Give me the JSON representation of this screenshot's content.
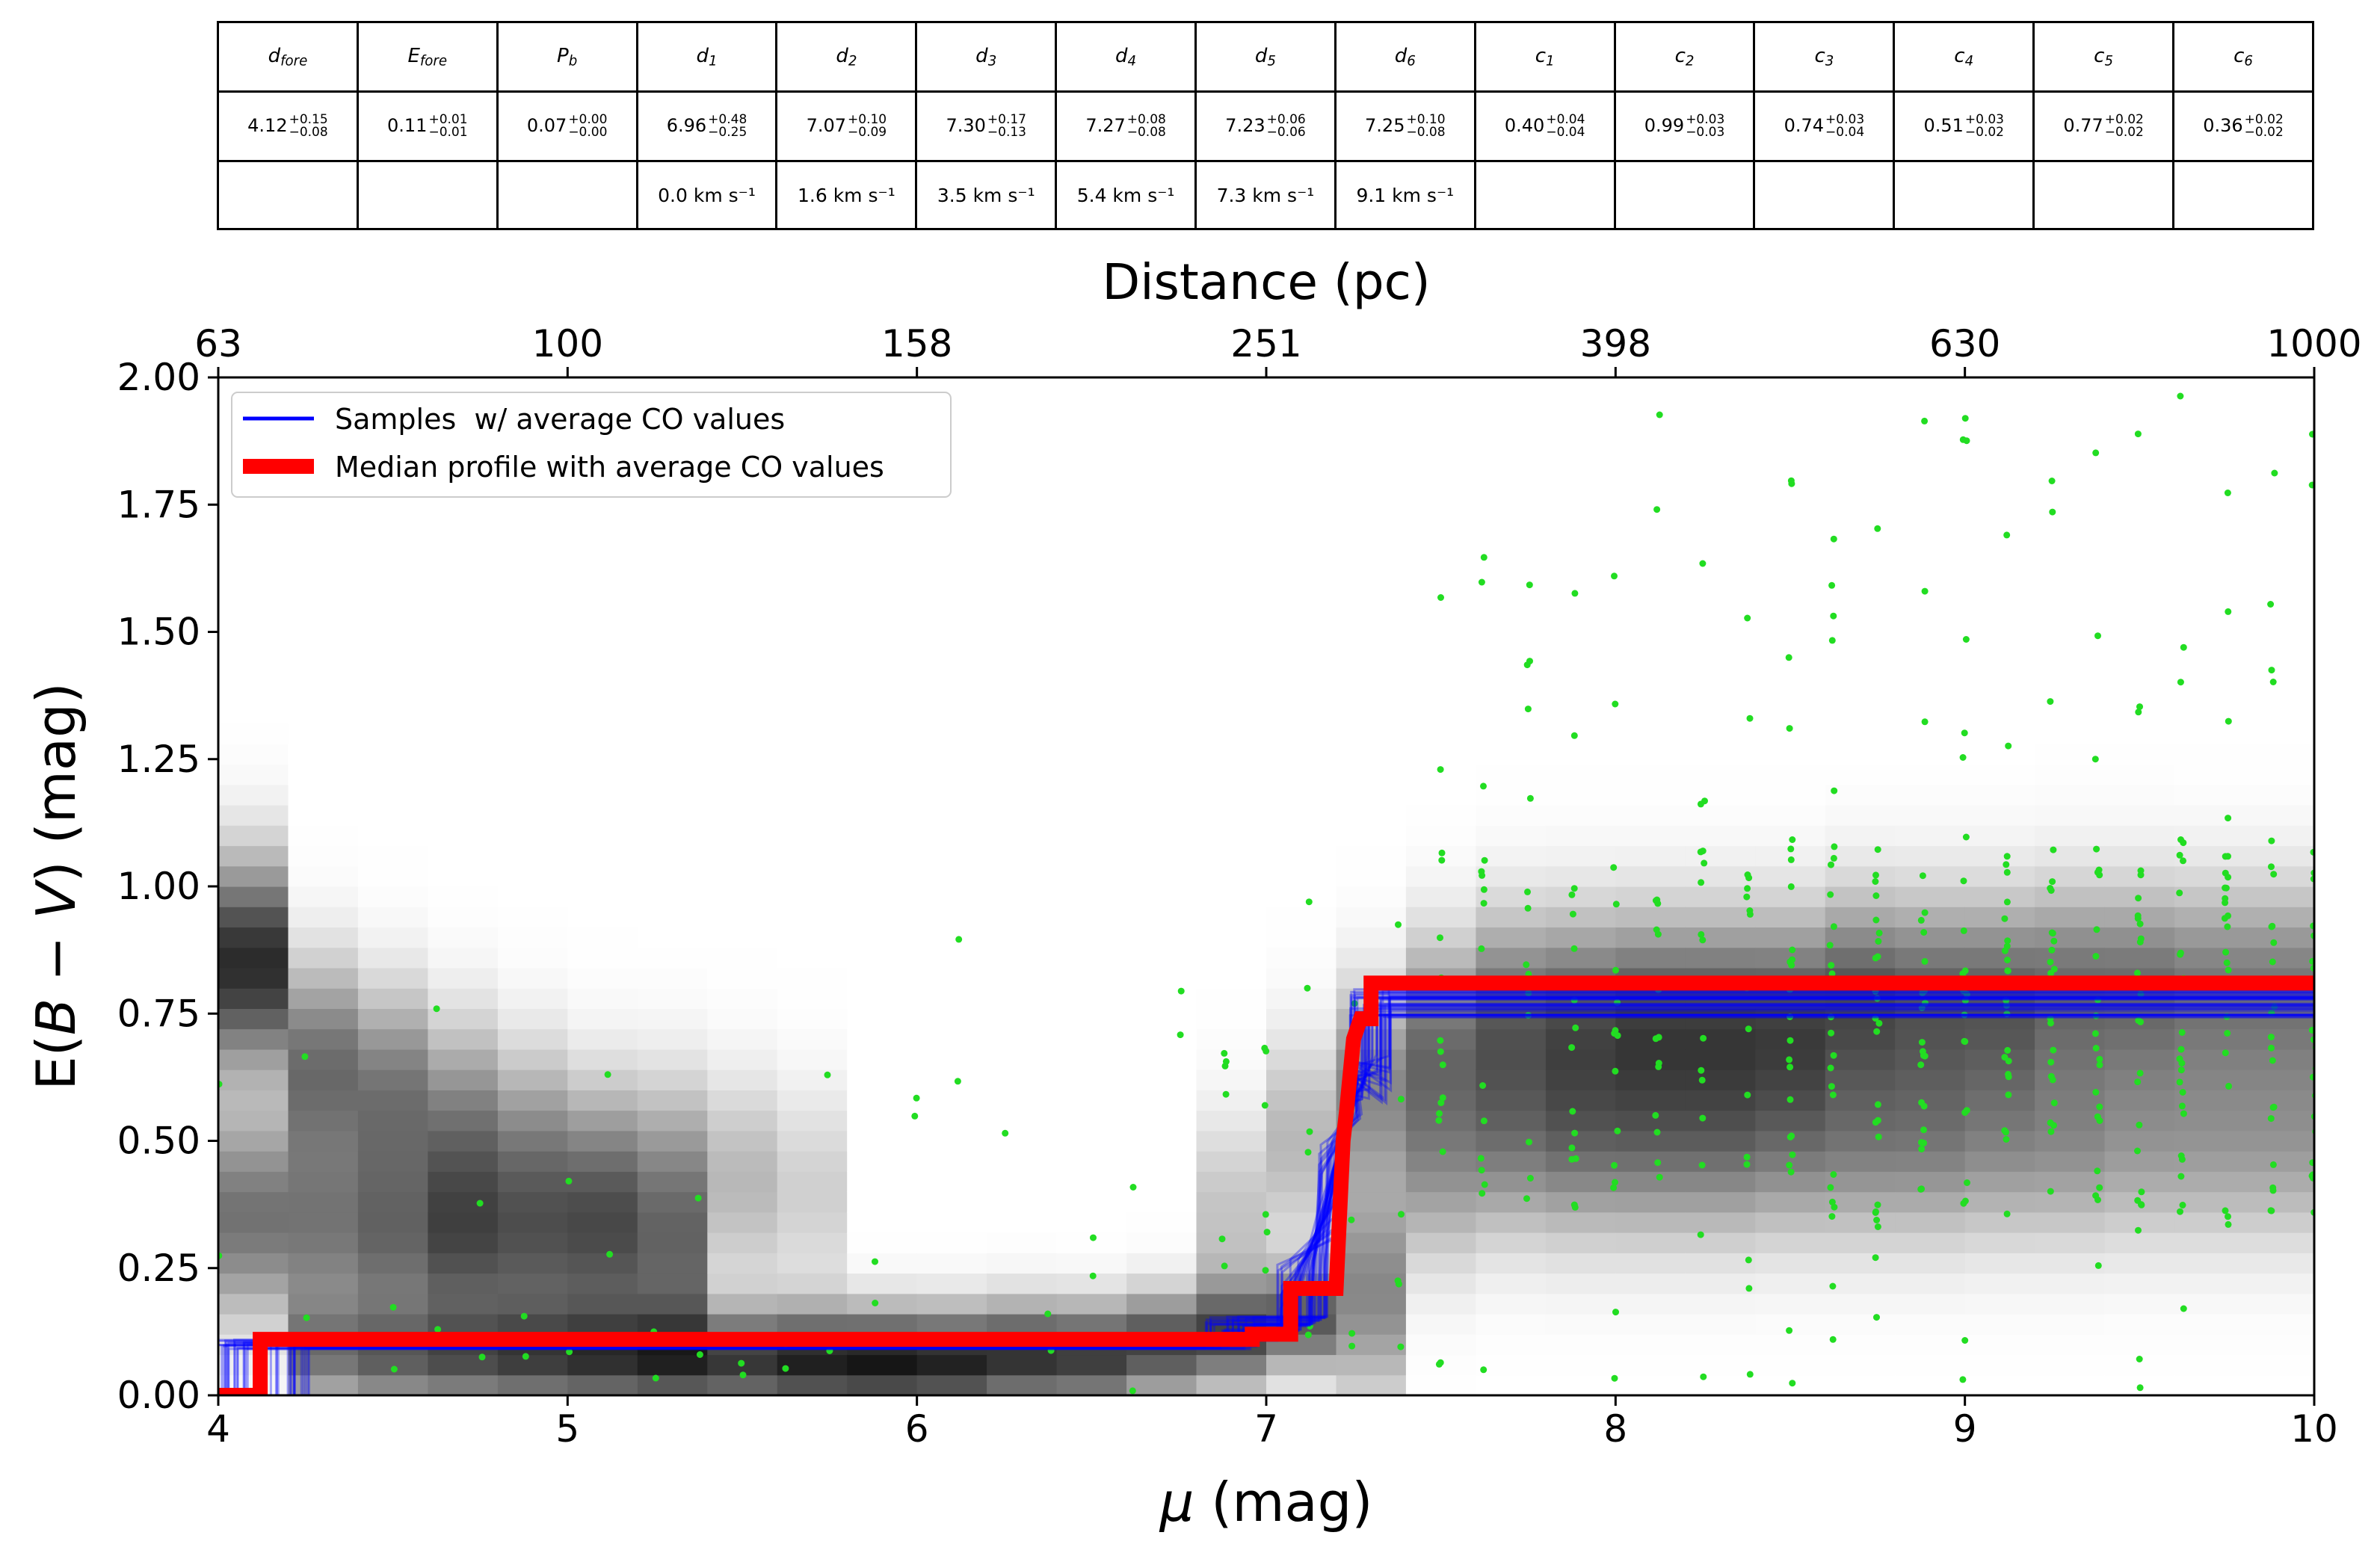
{
  "table": {
    "headers": [
      {
        "sym": "d",
        "sub": "fore"
      },
      {
        "sym": "E",
        "sub": "fore"
      },
      {
        "sym": "P",
        "sub": "b"
      },
      {
        "sym": "d",
        "sub": "1"
      },
      {
        "sym": "d",
        "sub": "2"
      },
      {
        "sym": "d",
        "sub": "3"
      },
      {
        "sym": "d",
        "sub": "4"
      },
      {
        "sym": "d",
        "sub": "5"
      },
      {
        "sym": "d",
        "sub": "6"
      },
      {
        "sym": "c",
        "sub": "1"
      },
      {
        "sym": "c",
        "sub": "2"
      },
      {
        "sym": "c",
        "sub": "3"
      },
      {
        "sym": "c",
        "sub": "4"
      },
      {
        "sym": "c",
        "sub": "5"
      },
      {
        "sym": "c",
        "sub": "6"
      }
    ],
    "values": [
      {
        "v": "4.12",
        "up": "+0.15",
        "lo": "−0.08"
      },
      {
        "v": "0.11",
        "up": "+0.01",
        "lo": "−0.01"
      },
      {
        "v": "0.07",
        "up": "+0.00",
        "lo": "−0.00"
      },
      {
        "v": "6.96",
        "up": "+0.48",
        "lo": "−0.25"
      },
      {
        "v": "7.07",
        "up": "+0.10",
        "lo": "−0.09"
      },
      {
        "v": "7.30",
        "up": "+0.17",
        "lo": "−0.13"
      },
      {
        "v": "7.27",
        "up": "+0.08",
        "lo": "−0.08"
      },
      {
        "v": "7.23",
        "up": "+0.06",
        "lo": "−0.06"
      },
      {
        "v": "7.25",
        "up": "+0.10",
        "lo": "−0.08"
      },
      {
        "v": "0.40",
        "up": "+0.04",
        "lo": "−0.04"
      },
      {
        "v": "0.99",
        "up": "+0.03",
        "lo": "−0.03"
      },
      {
        "v": "0.74",
        "up": "+0.03",
        "lo": "−0.04"
      },
      {
        "v": "0.51",
        "up": "+0.03",
        "lo": "−0.02"
      },
      {
        "v": "0.77",
        "up": "+0.02",
        "lo": "−0.02"
      },
      {
        "v": "0.36",
        "up": "+0.02",
        "lo": "−0.02"
      }
    ],
    "velocities": [
      "",
      "",
      "",
      "0.0 km s⁻¹",
      "1.6 km s⁻¹",
      "3.5 km s⁻¹",
      "5.4 km s⁻¹",
      "7.3 km s⁻¹",
      "9.1 km s⁻¹",
      "",
      "",
      "",
      "",
      "",
      ""
    ]
  },
  "chart_data": {
    "type": "line",
    "xlabel": "μ (mag)",
    "ylabel": "E(B − V) (mag)",
    "top_axis_label": "Distance (pc)",
    "xlim": [
      4,
      10
    ],
    "ylim": [
      0,
      2.0
    ],
    "x_ticks": [
      4,
      5,
      6,
      7,
      8,
      9,
      10
    ],
    "y_ticks": [
      "0.00",
      "0.25",
      "0.50",
      "0.75",
      "1.00",
      "1.25",
      "1.50",
      "1.75",
      "2.00"
    ],
    "top_ticks": [
      {
        "mu": 4,
        "label": "63"
      },
      {
        "mu": 5,
        "label": "100"
      },
      {
        "mu": 6,
        "label": "158"
      },
      {
        "mu": 7,
        "label": "251"
      },
      {
        "mu": 8,
        "label": "398"
      },
      {
        "mu": 9,
        "label": "630"
      },
      {
        "mu": 10,
        "label": "1000"
      }
    ],
    "legend": {
      "position": "top-left",
      "entries": [
        {
          "label": "Samples  w/ average CO values",
          "color": "#0000ff"
        },
        {
          "label": "Median profile with average CO values",
          "color": "#ff0000"
        }
      ]
    },
    "colors": {
      "samples": "#0000ff",
      "median": "#ff0000",
      "stars": "#22dd22"
    },
    "median_profile": {
      "x": [
        4.0,
        4.12,
        4.12,
        6.96,
        6.96,
        7.07,
        7.07,
        7.2,
        7.22,
        7.23,
        7.25,
        7.27,
        7.3,
        7.3,
        10.0
      ],
      "y": [
        0.0,
        0.0,
        0.11,
        0.11,
        0.12,
        0.12,
        0.21,
        0.21,
        0.5,
        0.56,
        0.7,
        0.74,
        0.74,
        0.81,
        0.81
      ]
    },
    "background_density": {
      "x_centers": [
        4.05,
        4.25,
        4.45,
        4.65,
        4.85,
        5.05,
        5.25,
        5.45,
        5.65,
        5.85,
        6.05,
        6.25,
        6.45,
        6.65,
        6.85,
        7.05,
        7.25,
        7.45,
        7.65,
        7.85,
        8.05,
        8.25,
        8.45,
        8.65,
        8.85,
        9.05,
        9.25,
        9.45,
        9.65,
        9.85
      ],
      "peaks": [
        [
          [
            0.85,
            0.9
          ],
          [
            0.35,
            0.6
          ]
        ],
        [
          [
            0.65,
            0.6
          ],
          [
            0.32,
            0.55
          ],
          [
            0.08,
            0.5
          ]
        ],
        [
          [
            0.6,
            0.55
          ],
          [
            0.3,
            0.6
          ],
          [
            0.07,
            0.55
          ]
        ],
        [
          [
            0.55,
            0.45
          ],
          [
            0.3,
            0.7
          ],
          [
            0.07,
            0.6
          ]
        ],
        [
          [
            0.5,
            0.4
          ],
          [
            0.28,
            0.6
          ],
          [
            0.07,
            0.65
          ]
        ],
        [
          [
            0.45,
            0.4
          ],
          [
            0.27,
            0.55
          ],
          [
            0.07,
            0.7
          ]
        ],
        [
          [
            0.45,
            0.35
          ],
          [
            0.25,
            0.5
          ],
          [
            0.07,
            0.75
          ]
        ],
        [
          [
            0.42,
            0.3
          ],
          [
            0.07,
            0.85
          ]
        ],
        [
          [
            0.4,
            0.2
          ],
          [
            0.07,
            0.95
          ]
        ],
        [
          [
            0.07,
            1.0
          ]
        ],
        [
          [
            0.07,
            0.95
          ]
        ],
        [
          [
            0.08,
            0.9
          ]
        ],
        [
          [
            0.08,
            0.85
          ]
        ],
        [
          [
            0.1,
            0.8
          ]
        ],
        [
          [
            0.12,
            0.75
          ],
          [
            0.35,
            0.25
          ]
        ],
        [
          [
            0.15,
            0.7
          ],
          [
            0.5,
            0.3
          ]
        ],
        [
          [
            0.6,
            0.5
          ],
          [
            0.2,
            0.5
          ]
        ],
        [
          [
            0.7,
            0.55
          ],
          [
            0.45,
            0.4
          ]
        ],
        [
          [
            0.75,
            0.6
          ],
          [
            0.5,
            0.5
          ]
        ],
        [
          [
            0.75,
            0.65
          ],
          [
            0.5,
            0.55
          ]
        ],
        [
          [
            0.75,
            0.7
          ],
          [
            0.5,
            0.55
          ]
        ],
        [
          [
            0.75,
            0.7
          ],
          [
            0.5,
            0.55
          ]
        ],
        [
          [
            0.75,
            0.7
          ],
          [
            0.5,
            0.5
          ]
        ],
        [
          [
            0.78,
            0.7
          ],
          [
            0.5,
            0.5
          ]
        ],
        [
          [
            0.78,
            0.65
          ],
          [
            0.5,
            0.5
          ]
        ],
        [
          [
            0.78,
            0.65
          ],
          [
            0.5,
            0.45
          ]
        ],
        [
          [
            0.8,
            0.6
          ],
          [
            0.5,
            0.45
          ]
        ],
        [
          [
            0.8,
            0.6
          ],
          [
            0.5,
            0.4
          ]
        ],
        [
          [
            0.8,
            0.55
          ],
          [
            0.5,
            0.4
          ]
        ],
        [
          [
            0.8,
            0.55
          ],
          [
            0.5,
            0.4
          ]
        ]
      ]
    },
    "star_columns": [
      4.0,
      4.25,
      4.5,
      4.63,
      4.75,
      4.88,
      5.0,
      5.12,
      5.25,
      5.38,
      5.5,
      5.62,
      5.75,
      5.88,
      6.0,
      6.12,
      6.25,
      6.38,
      6.5,
      6.62,
      6.75,
      6.88,
      7.0,
      7.12,
      7.25,
      7.38,
      7.5,
      7.62,
      7.75,
      7.88,
      8.0,
      8.12,
      8.25,
      8.38,
      8.5,
      8.62,
      8.75,
      8.88,
      9.0,
      9.12,
      9.25,
      9.38,
      9.5,
      9.62,
      9.75,
      9.88,
      10.0
    ]
  }
}
